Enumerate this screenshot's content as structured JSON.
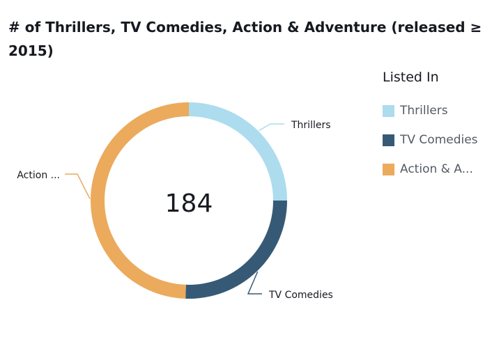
{
  "title": "# of Thrillers, TV Comedies, Action & Adventure (released ≥ 2015)",
  "center_total": "184",
  "legend": {
    "title": "Listed In",
    "items": [
      {
        "label": "Thrillers",
        "color": "#acdcee"
      },
      {
        "label": "TV Comedies",
        "color": "#365a76"
      },
      {
        "label": "Action & A...",
        "color": "#ebaa5c"
      }
    ]
  },
  "chart_data": {
    "type": "pie",
    "donut": true,
    "title": "# of Thrillers, TV Comedies, Action & Adventure (released ≥ 2015)",
    "total": 184,
    "categories": [
      "Thrillers",
      "TV Comedies",
      "Action & A..."
    ],
    "values": [
      46,
      47,
      91
    ],
    "slice_labels": [
      "Thrillers",
      "TV Comedies",
      "Action ..."
    ],
    "colors": [
      "#acdcee",
      "#365a76",
      "#ebaa5c"
    ],
    "legend_position": "right"
  }
}
